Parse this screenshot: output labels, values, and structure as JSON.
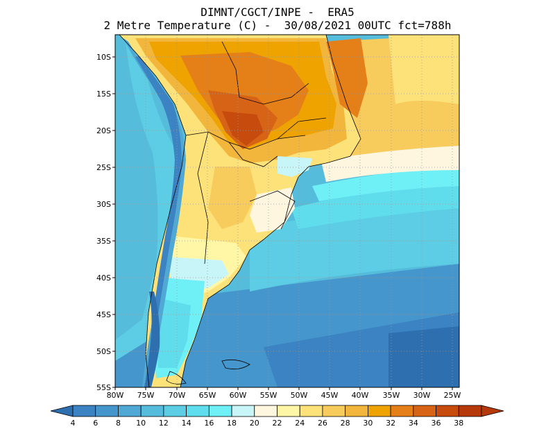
{
  "title": {
    "line1": "DIMNT/CGCT/INPE -  ERA5",
    "line2": "2 Metre Temperature (C) -  30/08/2021 00UTC fct=788h"
  },
  "axes": {
    "lat_labels": [
      "10S",
      "15S",
      "20S",
      "25S",
      "30S",
      "35S",
      "40S",
      "45S",
      "50S",
      "55S"
    ],
    "lon_labels": [
      "80W",
      "75W",
      "70W",
      "65W",
      "60W",
      "55W",
      "50W",
      "45W",
      "40W",
      "35W",
      "30W",
      "25W"
    ]
  },
  "colorbar": {
    "labels": [
      "4",
      "6",
      "8",
      "10",
      "12",
      "14",
      "16",
      "18",
      "20",
      "22",
      "24",
      "26",
      "28",
      "30",
      "32",
      "34",
      "36",
      "38"
    ],
    "colors": [
      "#2e6fb0",
      "#3b83c2",
      "#4596cc",
      "#4fa9d4",
      "#56bcdc",
      "#5ccde4",
      "#60dded",
      "#6ef0f6",
      "#c8f6f8",
      "#fff6e0",
      "#fff7a6",
      "#fde27a",
      "#f8cb5d",
      "#f2b63d",
      "#eea300",
      "#e57f18",
      "#d76416",
      "#c84b0e",
      "#b5390a"
    ]
  }
}
